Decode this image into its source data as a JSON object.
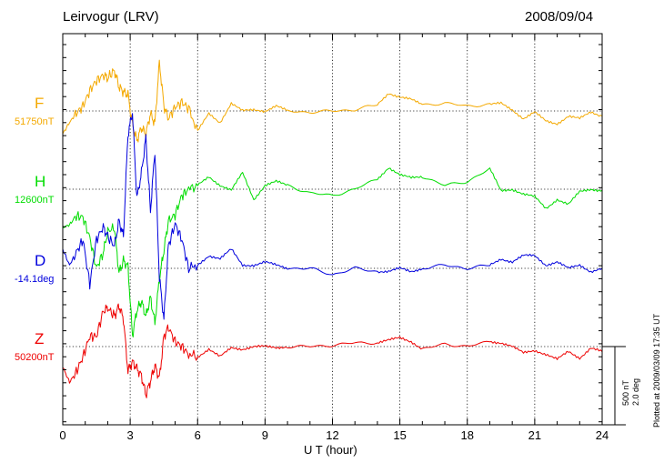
{
  "header": {
    "station": "Leirvogur (LRV)",
    "date": "2008/09/04"
  },
  "footer_note": "Plotted at 2009/03/09 17:35 UT",
  "chart_data": {
    "type": "line",
    "title": "",
    "xlabel": "U T (hour)",
    "ylabel": "",
    "xlim": [
      0,
      24
    ],
    "x_ticks": [
      0,
      3,
      6,
      9,
      12,
      15,
      18,
      21,
      24
    ],
    "grid": true,
    "scale_bar": {
      "nT": "500 nT",
      "deg": "2.0 deg"
    },
    "series": [
      {
        "name": "F",
        "baseline_label": "51750nT",
        "color": "#f4a900",
        "unit": "nT",
        "base": 51750,
        "x": [
          0,
          0.3,
          0.6,
          0.9,
          1.2,
          1.5,
          1.8,
          2.0,
          2.3,
          2.5,
          2.7,
          2.9,
          3.1,
          3.3,
          3.5,
          3.7,
          3.9,
          4.1,
          4.3,
          4.5,
          4.7,
          5.0,
          5.3,
          5.6,
          6.0,
          6.5,
          7.0,
          7.5,
          8.0,
          8.5,
          9.0,
          9.5,
          10,
          11,
          12,
          13,
          14,
          14.5,
          15,
          15.5,
          16,
          17,
          18,
          19,
          19.5,
          20,
          20.5,
          21,
          21.5,
          22,
          22.5,
          23,
          23.5,
          24
        ],
        "y": [
          -180,
          -90,
          -20,
          40,
          160,
          240,
          280,
          260,
          320,
          190,
          150,
          130,
          -110,
          -230,
          -130,
          -180,
          -20,
          -100,
          380,
          40,
          -60,
          30,
          70,
          20,
          -160,
          -20,
          -90,
          60,
          0,
          10,
          0,
          40,
          0,
          -10,
          0,
          10,
          50,
          140,
          110,
          90,
          50,
          60,
          40,
          50,
          60,
          10,
          -60,
          -10,
          -80,
          -100,
          -40,
          -60,
          -10,
          -40
        ]
      },
      {
        "name": "H",
        "baseline_label": "12600nT",
        "color": "#00dd00",
        "unit": "nT",
        "base": 12600,
        "x": [
          0,
          0.3,
          0.6,
          0.9,
          1.2,
          1.5,
          1.8,
          2.0,
          2.3,
          2.5,
          2.7,
          2.9,
          3.1,
          3.3,
          3.5,
          3.7,
          3.9,
          4.1,
          4.3,
          4.5,
          4.7,
          5.0,
          5.3,
          5.6,
          6.0,
          6.5,
          7.0,
          7.5,
          8.0,
          8.5,
          9.0,
          9.5,
          10,
          11,
          12,
          13,
          14,
          14.5,
          15,
          15.5,
          16,
          17,
          18,
          19,
          19.5,
          20,
          20.5,
          21,
          21.5,
          22,
          22.5,
          23,
          23.5,
          24
        ],
        "y": [
          -300,
          -280,
          -210,
          -220,
          -380,
          -620,
          -500,
          -330,
          -300,
          -660,
          -560,
          -610,
          -1150,
          -950,
          -880,
          -1000,
          -850,
          -1050,
          -700,
          -480,
          -250,
          -200,
          -50,
          0,
          30,
          100,
          30,
          -10,
          130,
          -80,
          30,
          60,
          30,
          -30,
          -50,
          0,
          80,
          170,
          110,
          90,
          100,
          30,
          60,
          160,
          -10,
          0,
          -40,
          -60,
          -150,
          -80,
          -120,
          -20,
          0,
          -10
        ]
      },
      {
        "name": "D",
        "baseline_label": "-14.1deg",
        "color": "#0000dd",
        "unit": "deg",
        "base": -14.1,
        "x": [
          0,
          0.3,
          0.6,
          0.9,
          1.2,
          1.5,
          1.8,
          2.0,
          2.3,
          2.5,
          2.7,
          2.9,
          3.1,
          3.3,
          3.5,
          3.7,
          3.9,
          4.1,
          4.3,
          4.5,
          4.7,
          5.0,
          5.3,
          5.6,
          6.0,
          6.5,
          7.0,
          7.5,
          8.0,
          8.5,
          9.0,
          9.5,
          10,
          11,
          12,
          13,
          14,
          14.5,
          15,
          15.5,
          16,
          17,
          18,
          19,
          19.5,
          20,
          20.5,
          21,
          21.5,
          22,
          22.5,
          23,
          23.5,
          24
        ],
        "y": [
          0.6,
          0.1,
          0.5,
          0.9,
          -0.5,
          0.9,
          1.3,
          1.0,
          0.7,
          1.5,
          1.0,
          4.2,
          4.9,
          2.2,
          3.0,
          4.1,
          1.8,
          3.7,
          -0.3,
          -1.6,
          0.7,
          1.4,
          0.9,
          0.0,
          0.1,
          0.4,
          0.3,
          0.6,
          0.1,
          0.1,
          0.2,
          0.1,
          0.0,
          0.0,
          -0.2,
          0.0,
          -0.1,
          -0.1,
          0.0,
          -0.1,
          0.0,
          0.1,
          0.0,
          0.1,
          0.3,
          0.2,
          0.4,
          0.4,
          0.1,
          0.2,
          0.0,
          0.1,
          -0.1,
          0.0
        ]
      },
      {
        "name": "Z",
        "baseline_label": "50200nT",
        "color": "#ee0000",
        "unit": "nT",
        "base": 50200,
        "x": [
          0,
          0.3,
          0.6,
          0.9,
          1.2,
          1.5,
          1.8,
          2.0,
          2.3,
          2.5,
          2.7,
          2.9,
          3.1,
          3.3,
          3.5,
          3.7,
          3.9,
          4.1,
          4.3,
          4.5,
          4.7,
          5.0,
          5.3,
          5.6,
          6.0,
          6.5,
          7.0,
          7.5,
          8.0,
          8.5,
          9.0,
          9.5,
          10,
          11,
          12,
          13,
          14,
          14.5,
          15,
          15.5,
          16,
          17,
          18,
          19,
          19.5,
          20,
          20.5,
          21,
          21.5,
          22,
          22.5,
          23,
          23.5,
          24
        ],
        "y": [
          -160,
          -280,
          -200,
          -80,
          80,
          80,
          280,
          300,
          240,
          320,
          220,
          -190,
          -120,
          -170,
          -230,
          -380,
          -270,
          -150,
          -250,
          80,
          150,
          40,
          0,
          -60,
          -80,
          -20,
          -80,
          -10,
          -20,
          0,
          0,
          -10,
          0,
          0,
          10,
          30,
          30,
          50,
          70,
          40,
          -20,
          20,
          0,
          40,
          30,
          0,
          -50,
          -30,
          -60,
          -100,
          -40,
          -90,
          -10,
          -40
        ]
      }
    ]
  }
}
